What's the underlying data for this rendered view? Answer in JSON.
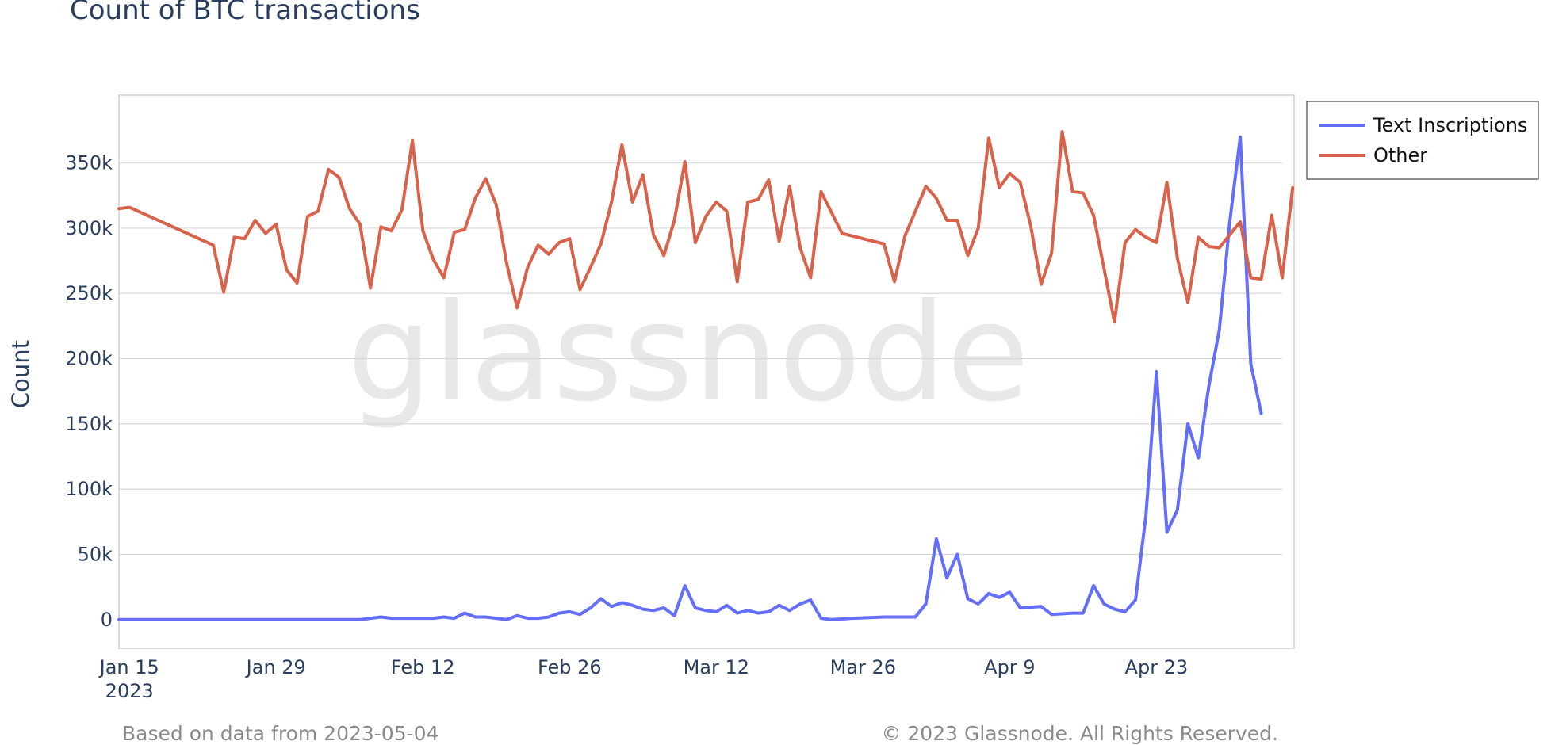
{
  "chart_data": {
    "type": "line",
    "title": "Count of BTC transactions",
    "xlabel": "",
    "ylabel": "Count",
    "y_ticks": [
      "0",
      "50k",
      "100k",
      "150k",
      "200k",
      "250k",
      "300k",
      "350k"
    ],
    "ylim": [
      -22000,
      402000
    ],
    "x_ticks": [
      {
        "date": "2023-01-15",
        "label": "Jan 15",
        "sublabel": "2023"
      },
      {
        "date": "2023-01-29",
        "label": "Jan 29",
        "sublabel": ""
      },
      {
        "date": "2023-02-12",
        "label": "Feb 12",
        "sublabel": ""
      },
      {
        "date": "2023-02-26",
        "label": "Feb 26",
        "sublabel": ""
      },
      {
        "date": "2023-03-12",
        "label": "Mar 12",
        "sublabel": ""
      },
      {
        "date": "2023-03-26",
        "label": "Mar 26",
        "sublabel": ""
      },
      {
        "date": "2023-04-09",
        "label": "Apr 9",
        "sublabel": ""
      },
      {
        "date": "2023-04-23",
        "label": "Apr 23",
        "sublabel": ""
      }
    ],
    "xlim": [
      "2023-01-14",
      "2023-05-05"
    ],
    "grid": true,
    "legend_position": "top-right",
    "watermark": "glassnode",
    "footer_left": "Based on data from 2023-05-04",
    "footer_right": "© 2023 Glassnode. All Rights Reserved.",
    "series": [
      {
        "name": "Text Inscriptions",
        "color": "#636efa",
        "points": [
          [
            "2023-01-14",
            0
          ],
          [
            "2023-01-15",
            0
          ],
          [
            "2023-01-20",
            0
          ],
          [
            "2023-01-23",
            0
          ],
          [
            "2023-01-28",
            0
          ],
          [
            "2023-02-01",
            0
          ],
          [
            "2023-02-06",
            0
          ],
          [
            "2023-02-07",
            1000
          ],
          [
            "2023-02-08",
            2000
          ],
          [
            "2023-02-09",
            1000
          ],
          [
            "2023-02-10",
            1000
          ],
          [
            "2023-02-11",
            1000
          ],
          [
            "2023-02-12",
            1000
          ],
          [
            "2023-02-13",
            1000
          ],
          [
            "2023-02-14",
            2000
          ],
          [
            "2023-02-15",
            1000
          ],
          [
            "2023-02-16",
            5000
          ],
          [
            "2023-02-17",
            2000
          ],
          [
            "2023-02-18",
            2000
          ],
          [
            "2023-02-19",
            1000
          ],
          [
            "2023-02-20",
            0
          ],
          [
            "2023-02-21",
            3000
          ],
          [
            "2023-02-22",
            1000
          ],
          [
            "2023-02-23",
            1000
          ],
          [
            "2023-02-24",
            2000
          ],
          [
            "2023-02-25",
            5000
          ],
          [
            "2023-02-26",
            6000
          ],
          [
            "2023-02-27",
            4000
          ],
          [
            "2023-02-28",
            9000
          ],
          [
            "2023-03-01",
            16000
          ],
          [
            "2023-03-02",
            10000
          ],
          [
            "2023-03-03",
            13000
          ],
          [
            "2023-03-04",
            11000
          ],
          [
            "2023-03-05",
            8000
          ],
          [
            "2023-03-06",
            7000
          ],
          [
            "2023-03-07",
            9000
          ],
          [
            "2023-03-08",
            3000
          ],
          [
            "2023-03-09",
            26000
          ],
          [
            "2023-03-10",
            9000
          ],
          [
            "2023-03-11",
            7000
          ],
          [
            "2023-03-12",
            6000
          ],
          [
            "2023-03-13",
            11000
          ],
          [
            "2023-03-14",
            5000
          ],
          [
            "2023-03-15",
            7000
          ],
          [
            "2023-03-16",
            5000
          ],
          [
            "2023-03-17",
            6000
          ],
          [
            "2023-03-18",
            11000
          ],
          [
            "2023-03-19",
            7000
          ],
          [
            "2023-03-20",
            12000
          ],
          [
            "2023-03-21",
            15000
          ],
          [
            "2023-03-22",
            1000
          ],
          [
            "2023-03-23",
            0
          ],
          [
            "2023-03-25",
            1000
          ],
          [
            "2023-03-28",
            2000
          ],
          [
            "2023-03-31",
            2000
          ],
          [
            "2023-04-01",
            12000
          ],
          [
            "2023-04-02",
            62000
          ],
          [
            "2023-04-03",
            32000
          ],
          [
            "2023-04-04",
            50000
          ],
          [
            "2023-04-05",
            16000
          ],
          [
            "2023-04-06",
            12000
          ],
          [
            "2023-04-07",
            20000
          ],
          [
            "2023-04-08",
            17000
          ],
          [
            "2023-04-09",
            21000
          ],
          [
            "2023-04-10",
            9000
          ],
          [
            "2023-04-12",
            10000
          ],
          [
            "2023-04-13",
            4000
          ],
          [
            "2023-04-15",
            5000
          ],
          [
            "2023-04-16",
            5000
          ],
          [
            "2023-04-17",
            26000
          ],
          [
            "2023-04-18",
            12000
          ],
          [
            "2023-04-19",
            8000
          ],
          [
            "2023-04-20",
            6000
          ],
          [
            "2023-04-21",
            15000
          ],
          [
            "2023-04-22",
            80000
          ],
          [
            "2023-04-23",
            190000
          ],
          [
            "2023-04-24",
            67000
          ],
          [
            "2023-04-25",
            84000
          ],
          [
            "2023-04-26",
            150000
          ],
          [
            "2023-04-27",
            124000
          ],
          [
            "2023-04-28",
            179000
          ],
          [
            "2023-04-29",
            222000
          ],
          [
            "2023-04-30",
            305000
          ],
          [
            "2023-05-01",
            370000
          ],
          [
            "2023-05-02",
            196000
          ],
          [
            "2023-05-03",
            158000
          ]
        ]
      },
      {
        "name": "Other",
        "color": "#d9634a",
        "points": [
          [
            "2023-01-14",
            315000
          ],
          [
            "2023-01-15",
            316000
          ],
          [
            "2023-01-23",
            287000
          ],
          [
            "2023-01-24",
            251000
          ],
          [
            "2023-01-25",
            293000
          ],
          [
            "2023-01-26",
            292000
          ],
          [
            "2023-01-27",
            306000
          ],
          [
            "2023-01-28",
            296000
          ],
          [
            "2023-01-29",
            303000
          ],
          [
            "2023-01-30",
            268000
          ],
          [
            "2023-01-31",
            258000
          ],
          [
            "2023-02-01",
            309000
          ],
          [
            "2023-02-02",
            313000
          ],
          [
            "2023-02-03",
            345000
          ],
          [
            "2023-02-04",
            339000
          ],
          [
            "2023-02-05",
            315000
          ],
          [
            "2023-02-06",
            303000
          ],
          [
            "2023-02-07",
            254000
          ],
          [
            "2023-02-08",
            301000
          ],
          [
            "2023-02-09",
            298000
          ],
          [
            "2023-02-10",
            314000
          ],
          [
            "2023-02-11",
            367000
          ],
          [
            "2023-02-12",
            298000
          ],
          [
            "2023-02-13",
            276000
          ],
          [
            "2023-02-14",
            262000
          ],
          [
            "2023-02-15",
            297000
          ],
          [
            "2023-02-16",
            299000
          ],
          [
            "2023-02-17",
            323000
          ],
          [
            "2023-02-18",
            338000
          ],
          [
            "2023-02-19",
            318000
          ],
          [
            "2023-02-20",
            273000
          ],
          [
            "2023-02-21",
            239000
          ],
          [
            "2023-02-22",
            270000
          ],
          [
            "2023-02-23",
            287000
          ],
          [
            "2023-02-24",
            280000
          ],
          [
            "2023-02-25",
            289000
          ],
          [
            "2023-02-26",
            292000
          ],
          [
            "2023-02-27",
            253000
          ],
          [
            "2023-02-28",
            270000
          ],
          [
            "2023-03-01",
            288000
          ],
          [
            "2023-03-02",
            320000
          ],
          [
            "2023-03-03",
            364000
          ],
          [
            "2023-03-04",
            320000
          ],
          [
            "2023-03-05",
            341000
          ],
          [
            "2023-03-06",
            295000
          ],
          [
            "2023-03-07",
            279000
          ],
          [
            "2023-03-08",
            306000
          ],
          [
            "2023-03-09",
            351000
          ],
          [
            "2023-03-10",
            289000
          ],
          [
            "2023-03-11",
            309000
          ],
          [
            "2023-03-12",
            320000
          ],
          [
            "2023-03-13",
            313000
          ],
          [
            "2023-03-14",
            259000
          ],
          [
            "2023-03-15",
            320000
          ],
          [
            "2023-03-16",
            322000
          ],
          [
            "2023-03-17",
            337000
          ],
          [
            "2023-03-18",
            290000
          ],
          [
            "2023-03-19",
            332000
          ],
          [
            "2023-03-20",
            285000
          ],
          [
            "2023-03-21",
            262000
          ],
          [
            "2023-03-22",
            328000
          ],
          [
            "2023-03-23",
            312000
          ],
          [
            "2023-03-24",
            296000
          ],
          [
            "2023-03-28",
            288000
          ],
          [
            "2023-03-29",
            259000
          ],
          [
            "2023-03-30",
            294000
          ],
          [
            "2023-03-31",
            313000
          ],
          [
            "2023-04-01",
            332000
          ],
          [
            "2023-04-02",
            323000
          ],
          [
            "2023-04-03",
            306000
          ],
          [
            "2023-04-04",
            306000
          ],
          [
            "2023-04-05",
            279000
          ],
          [
            "2023-04-06",
            300000
          ],
          [
            "2023-04-07",
            369000
          ],
          [
            "2023-04-08",
            331000
          ],
          [
            "2023-04-09",
            342000
          ],
          [
            "2023-04-10",
            335000
          ],
          [
            "2023-04-11",
            302000
          ],
          [
            "2023-04-12",
            257000
          ],
          [
            "2023-04-13",
            281000
          ],
          [
            "2023-04-14",
            374000
          ],
          [
            "2023-04-15",
            328000
          ],
          [
            "2023-04-16",
            327000
          ],
          [
            "2023-04-17",
            310000
          ],
          [
            "2023-04-18",
            269000
          ],
          [
            "2023-04-19",
            228000
          ],
          [
            "2023-04-20",
            289000
          ],
          [
            "2023-04-21",
            299000
          ],
          [
            "2023-04-22",
            293000
          ],
          [
            "2023-04-23",
            289000
          ],
          [
            "2023-04-24",
            335000
          ],
          [
            "2023-04-25",
            277000
          ],
          [
            "2023-04-26",
            243000
          ],
          [
            "2023-04-27",
            293000
          ],
          [
            "2023-04-28",
            286000
          ],
          [
            "2023-04-29",
            285000
          ],
          [
            "2023-04-30",
            295000
          ],
          [
            "2023-05-01",
            305000
          ],
          [
            "2023-05-02",
            262000
          ],
          [
            "2023-05-03",
            261000
          ],
          [
            "2023-05-04",
            310000
          ],
          [
            "2023-05-05",
            262000
          ],
          [
            "2023-05-06",
            331000
          ]
        ]
      }
    ]
  }
}
